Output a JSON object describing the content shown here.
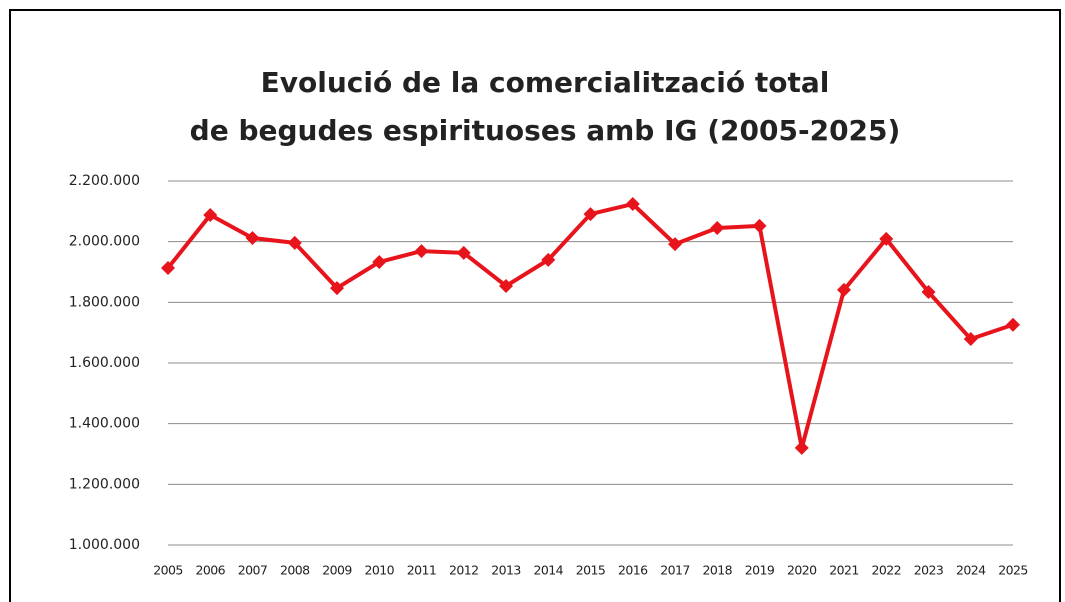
{
  "chart_data": {
    "type": "line",
    "title": [
      "Evolució de la comercialització total",
      "de begudes espirituoses amb IG (2005-2025)"
    ],
    "categories": [
      "2005",
      "2006",
      "2007",
      "2008",
      "2009",
      "2010",
      "2011",
      "2012",
      "2013",
      "2014",
      "2015",
      "2016",
      "2017",
      "2018",
      "2019",
      "2020",
      "2021",
      "2022",
      "2023",
      "2024",
      "2025"
    ],
    "series": [
      {
        "color": "#e8141c",
        "values": [
          1913000,
          2088000,
          2012000,
          1996000,
          1847000,
          1933000,
          1969000,
          1963000,
          1854000,
          1940000,
          2091000,
          2124000,
          1992000,
          2045000,
          2052000,
          1320000,
          1841000,
          2009000,
          1834000,
          1679000,
          1726000
        ]
      }
    ],
    "ylim": [
      1000000,
      2200000
    ],
    "yticks": [
      {
        "value": 1000000,
        "label": "1.000.000"
      },
      {
        "value": 1200000,
        "label": "1.200.000"
      },
      {
        "value": 1400000,
        "label": "1.400.000"
      },
      {
        "value": 1600000,
        "label": "1.600.000"
      },
      {
        "value": 1800000,
        "label": "1.800.000"
      },
      {
        "value": 2000000,
        "label": "2.000.000"
      },
      {
        "value": 2200000,
        "label": "2.200.000"
      }
    ],
    "grid": true
  }
}
